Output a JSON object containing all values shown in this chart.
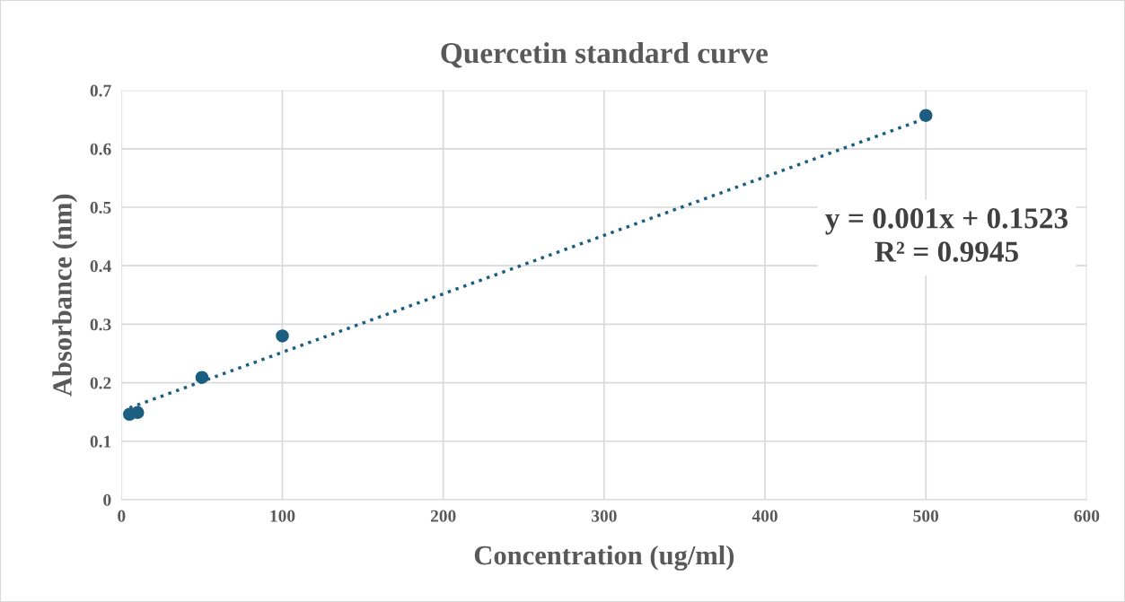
{
  "chart_data": {
    "type": "scatter",
    "title": "Quercetin standard curve",
    "xlabel": "Concentration (ug/ml)",
    "ylabel": "Absorbance (nm)",
    "xlim": [
      0,
      600
    ],
    "xticks": [
      0,
      100,
      200,
      300,
      400,
      500,
      600
    ],
    "ylim": [
      0,
      0.7
    ],
    "yticks": [
      0,
      0.1,
      0.2,
      0.3,
      0.4,
      0.5,
      0.6,
      0.7
    ],
    "grid": true,
    "series": [
      {
        "color": "#1b5e80",
        "marker": "circle",
        "x": [
          5,
          10,
          50,
          100,
          500
        ],
        "values": [
          0.146,
          0.149,
          0.209,
          0.28,
          0.657
        ]
      },
      {
        "type": "line",
        "color": "#1b5e80",
        "marker": "none",
        "line_style": "dotted",
        "x": [
          5,
          500
        ],
        "values": [
          0.157,
          0.652
        ]
      }
    ],
    "annotations": [
      "y = 0.001x + 0.1523\nR² = 0.9945"
    ]
  }
}
